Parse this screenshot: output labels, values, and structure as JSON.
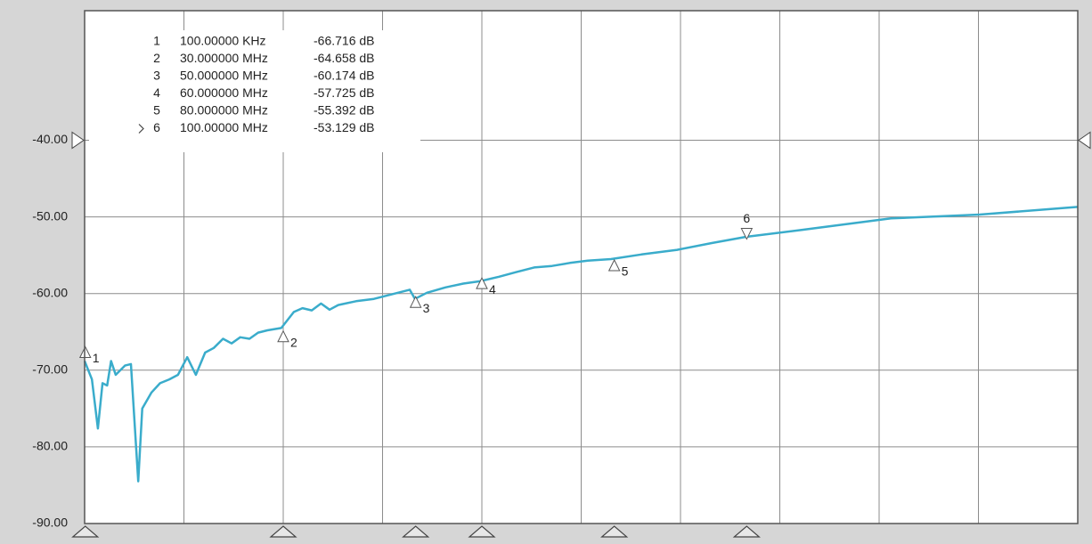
{
  "chart_data": {
    "type": "line",
    "x": [
      0,
      1.1,
      2.0,
      2.7,
      3.4,
      4.0,
      4.7,
      6.1,
      7.0,
      8.1,
      8.7,
      10.1,
      11.4,
      12.8,
      14.1,
      15.5,
      16.8,
      18.2,
      19.5,
      20.9,
      22.2,
      23.5,
      24.9,
      26.2,
      27.6,
      29.7,
      31.6,
      32.9,
      34.3,
      35.7,
      37.0,
      38.3,
      41.0,
      43.7,
      46.4,
      49.1,
      49.9,
      51.7,
      54.5,
      57.2,
      59.7,
      62.6,
      65.2,
      67.9,
      70.6,
      73.3,
      76.0,
      79.5,
      84.1,
      89.5,
      94.8,
      99.9,
      108.3,
      121.8,
      135.2,
      150.0
    ],
    "series": [
      {
        "color": "#3aaccb",
        "values": [
          -68.8,
          -71.2,
          -77.6,
          -71.7,
          -72.0,
          -68.8,
          -70.6,
          -69.4,
          -69.2,
          -84.5,
          -75.0,
          -72.9,
          -71.7,
          -71.2,
          -70.6,
          -68.3,
          -70.6,
          -67.7,
          -67.1,
          -65.9,
          -66.5,
          -65.7,
          -65.9,
          -65.1,
          -64.8,
          -64.5,
          -62.4,
          -61.9,
          -62.2,
          -61.3,
          -62.1,
          -61.5,
          -61.0,
          -60.7,
          -60.1,
          -59.5,
          -60.7,
          -59.9,
          -59.2,
          -58.7,
          -58.4,
          -57.8,
          -57.2,
          -56.6,
          -56.4,
          -56.0,
          -55.7,
          -55.5,
          -54.9,
          -54.3,
          -53.4,
          -52.6,
          -51.7,
          -50.2,
          -49.7,
          -48.7
        ]
      }
    ],
    "xlim": [
      0,
      150
    ],
    "xticks": [
      0,
      15,
      30,
      45,
      60,
      75,
      90,
      105,
      120,
      135,
      150
    ],
    "ylim": [
      -90,
      -23.1
    ],
    "yticks": [
      {
        "value": -90,
        "label": "-90.00"
      },
      {
        "value": -80,
        "label": "-80.00"
      },
      {
        "value": -70,
        "label": "-70.00"
      },
      {
        "value": -60,
        "label": "-60.00"
      },
      {
        "value": -50,
        "label": "-50.00"
      },
      {
        "value": -40,
        "label": "-40.00"
      }
    ],
    "reference_level": -40,
    "grid": true,
    "markers": {
      "numbers": [
        "1",
        "2",
        "3",
        "4",
        "5",
        "6"
      ],
      "frequencies": [
        "100.00000 KHz",
        "30.000000 MHz",
        "50.000000 MHz",
        "60.000000 MHz",
        "80.000000 MHz",
        "100.00000 MHz"
      ],
      "x": [
        0.1,
        30,
        50,
        60,
        80,
        100
      ],
      "values": [
        -66.716,
        -64.658,
        -60.174,
        -57.725,
        -55.392,
        -53.129
      ],
      "value_labels": [
        "-66.716 dB",
        "-64.658 dB",
        "-60.174 dB",
        "-57.725 dB",
        "-55.392 dB",
        "-53.129 dB"
      ],
      "active": 5
    }
  }
}
